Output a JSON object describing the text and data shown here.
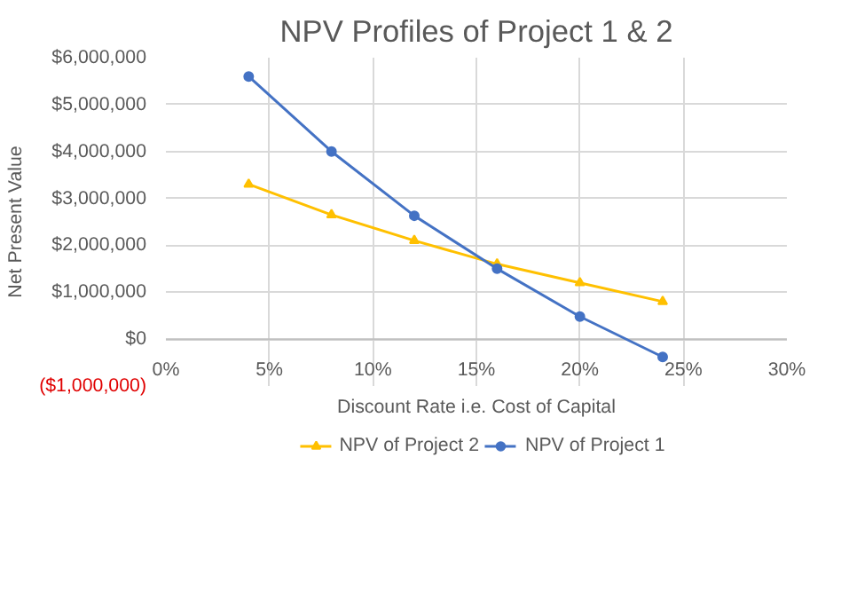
{
  "chart_data": {
    "type": "line",
    "title": "NPV Profiles of Project 1 & 2",
    "xlabel": "Discount Rate i.e. Cost of Capital",
    "ylabel": "Net Present Value",
    "x": [
      4,
      8,
      12,
      16,
      20,
      24
    ],
    "series": [
      {
        "name": "NPV of Project 2",
        "color": "#ffc000",
        "marker": "triangle",
        "values": [
          3300000,
          2650000,
          2100000,
          1600000,
          1200000,
          800000
        ]
      },
      {
        "name": "NPV of Project 1",
        "color": "#4472c4",
        "marker": "circle",
        "values": [
          5600000,
          4000000,
          2630000,
          1500000,
          480000,
          -380000
        ]
      }
    ],
    "xlim": [
      0,
      30
    ],
    "xticks": [
      {
        "value": 0,
        "label": "0%"
      },
      {
        "value": 5,
        "label": "5%"
      },
      {
        "value": 10,
        "label": "10%"
      },
      {
        "value": 15,
        "label": "15%"
      },
      {
        "value": 20,
        "label": "20%"
      },
      {
        "value": 25,
        "label": "25%"
      },
      {
        "value": 30,
        "label": "30%"
      }
    ],
    "ylim": [
      -1000000,
      6000000
    ],
    "yticks": [
      {
        "value": -1000000,
        "label": "($1,000,000)"
      },
      {
        "value": 0,
        "label": "$0"
      },
      {
        "value": 1000000,
        "label": "$1,000,000"
      },
      {
        "value": 2000000,
        "label": "$2,000,000"
      },
      {
        "value": 3000000,
        "label": "$3,000,000"
      },
      {
        "value": 4000000,
        "label": "$4,000,000"
      },
      {
        "value": 5000000,
        "label": "$5,000,000"
      },
      {
        "value": 6000000,
        "label": "$6,000,000"
      }
    ],
    "grid": true,
    "legend": "bottom",
    "line_style": "solid"
  }
}
